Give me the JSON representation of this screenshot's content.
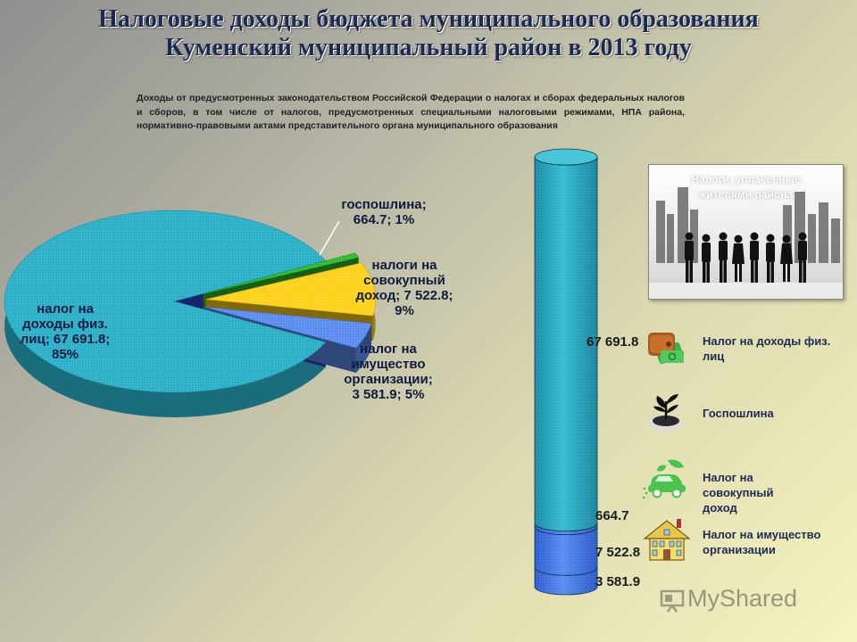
{
  "title": {
    "line1": "Налоговые доходы бюджета муниципального образования",
    "line2": "Куменский муниципальный район в 2013 году"
  },
  "subtitle": "Доходы от предусмотренных законодательством Российской Федерации о налогах и сборах федеральных налогов и сборов, в том числе от налогов, предусмотренных специальными налоговыми режимами, НПА района, нормативно-правовыми актами  представительного органа муниципального образования",
  "chart_data": [
    {
      "type": "pie",
      "style": "3d-exploded",
      "slices": [
        {
          "label": "налог на доходы физ. лиц",
          "value": 67691.8,
          "percent": 85,
          "color": "#2ab0c8",
          "text": "налог на\nдоходы физ.\nлиц; 67 691.8;\n85%"
        },
        {
          "label": "госпошлина",
          "value": 664.7,
          "percent": 1,
          "color": "#2dbd2d",
          "text": "госпошлина;\n664.7; 1%"
        },
        {
          "label": "налоги на совокупный доход",
          "value": 7522.8,
          "percent": 9,
          "color": "#ffd21a",
          "text": "налоги на\nсовокупный\nдоход; 7 522.8;\n9%"
        },
        {
          "label": "налог на имущество организации",
          "value": 3581.9,
          "percent": 5,
          "color": "#5b8cf0",
          "text": "налог на\nимущество\nорганизации;\n3 581.9; 5%"
        }
      ]
    },
    {
      "type": "bar",
      "style": "stacked-cylinder",
      "segments": [
        {
          "label": "налог на имущество организации",
          "value": 3581.9,
          "display": "3 581.9",
          "color": "#3f73e6"
        },
        {
          "label": "налоги на совокупный доход",
          "value": 7522.8,
          "display": "7 522.8",
          "color": "#4f86ee"
        },
        {
          "label": "госпошлина",
          "value": 664.7,
          "display": "664.7",
          "color": "#3d7fdf"
        },
        {
          "label": "налог на доходы физ. лиц",
          "value": 67691.8,
          "display": "67 691.8",
          "color": "#2aa3bd"
        }
      ]
    }
  ],
  "legend": [
    {
      "text": "Налог на доходы физ.\nлиц",
      "icon": "wallet-money-icon"
    },
    {
      "text": "Госпошлина",
      "icon": "plant-sprout-icon"
    },
    {
      "text": "Налог на\nсовокупный\nдоход",
      "icon": "eco-car-icon"
    },
    {
      "text": "Налог на имущество\nорганизации",
      "icon": "house-icon"
    }
  ],
  "photo": {
    "caption": "Налоги, уплаченные\nжителями района",
    "icon": "business-people-city-icon"
  },
  "watermark": "MyShared"
}
